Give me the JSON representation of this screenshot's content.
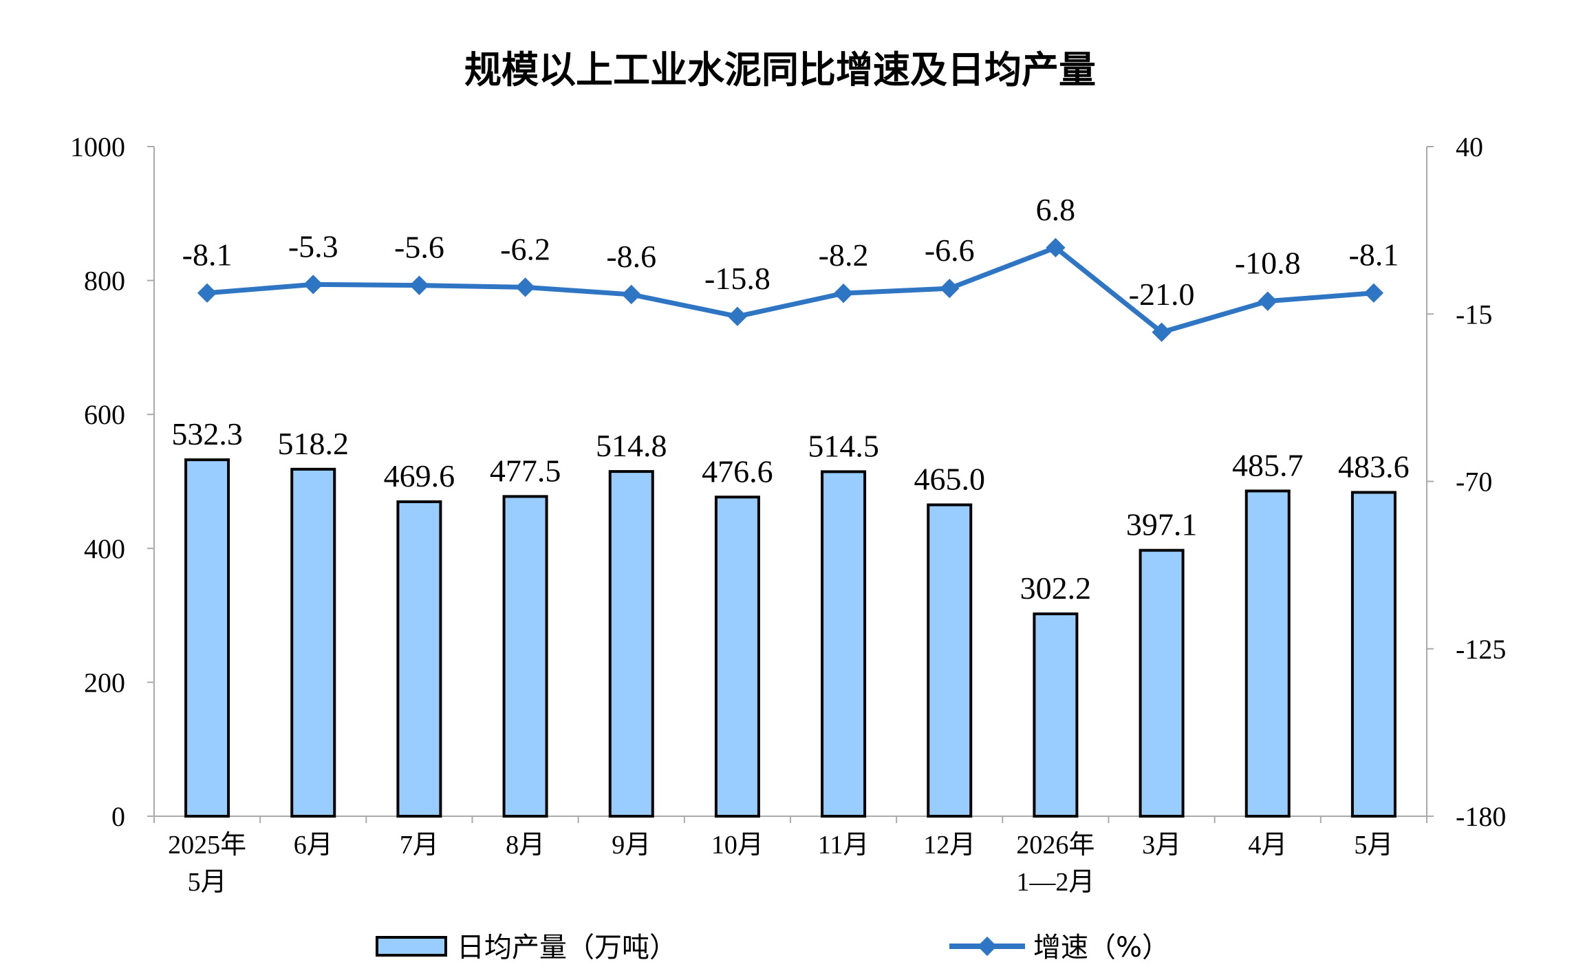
{
  "chart_data": {
    "type": "bar+line",
    "title": "规模以上工业水泥同比增速及日均产量",
    "categories": [
      [
        "2025年",
        "5月"
      ],
      [
        "6月"
      ],
      [
        "7月"
      ],
      [
        "8月"
      ],
      [
        "9月"
      ],
      [
        "10月"
      ],
      [
        "11月"
      ],
      [
        "12月"
      ],
      [
        "2026年",
        "1—2月"
      ],
      [
        "3月"
      ],
      [
        "4月"
      ],
      [
        "5月"
      ]
    ],
    "series": [
      {
        "name": "日均产量（万吨）",
        "type": "bar",
        "axis": "left",
        "color": "#99ccff",
        "values": [
          532.3,
          518.2,
          469.6,
          477.5,
          514.8,
          476.6,
          514.5,
          465.0,
          302.2,
          397.1,
          485.7,
          483.6
        ],
        "labels": [
          "532.3",
          "518.2",
          "469.6",
          "477.5",
          "514.8",
          "476.6",
          "514.5",
          "465.0",
          "302.2",
          "397.1",
          "485.7",
          "483.6"
        ]
      },
      {
        "name": "增速（%）",
        "type": "line",
        "axis": "right",
        "color": "#2e75c4",
        "values": [
          -8.1,
          -5.3,
          -5.6,
          -6.2,
          -8.6,
          -15.8,
          -8.2,
          -6.6,
          6.8,
          -21.0,
          -10.8,
          -8.1
        ],
        "labels": [
          "-8.1",
          "-5.3",
          "-5.6",
          "-6.2",
          "-8.6",
          "-15.8",
          "-8.2",
          "-6.6",
          "6.8",
          "-21.0",
          "-10.8",
          "-8.1"
        ]
      }
    ],
    "y_left": {
      "min": 0,
      "max": 1000,
      "ticks": [
        "0",
        "200",
        "400",
        "600",
        "800",
        "1000"
      ]
    },
    "y_right": {
      "min": -180,
      "max": 40,
      "ticks": [
        "-180",
        "-125",
        "-70",
        "-15",
        "40"
      ]
    },
    "grid": false,
    "legend": "bottom"
  }
}
